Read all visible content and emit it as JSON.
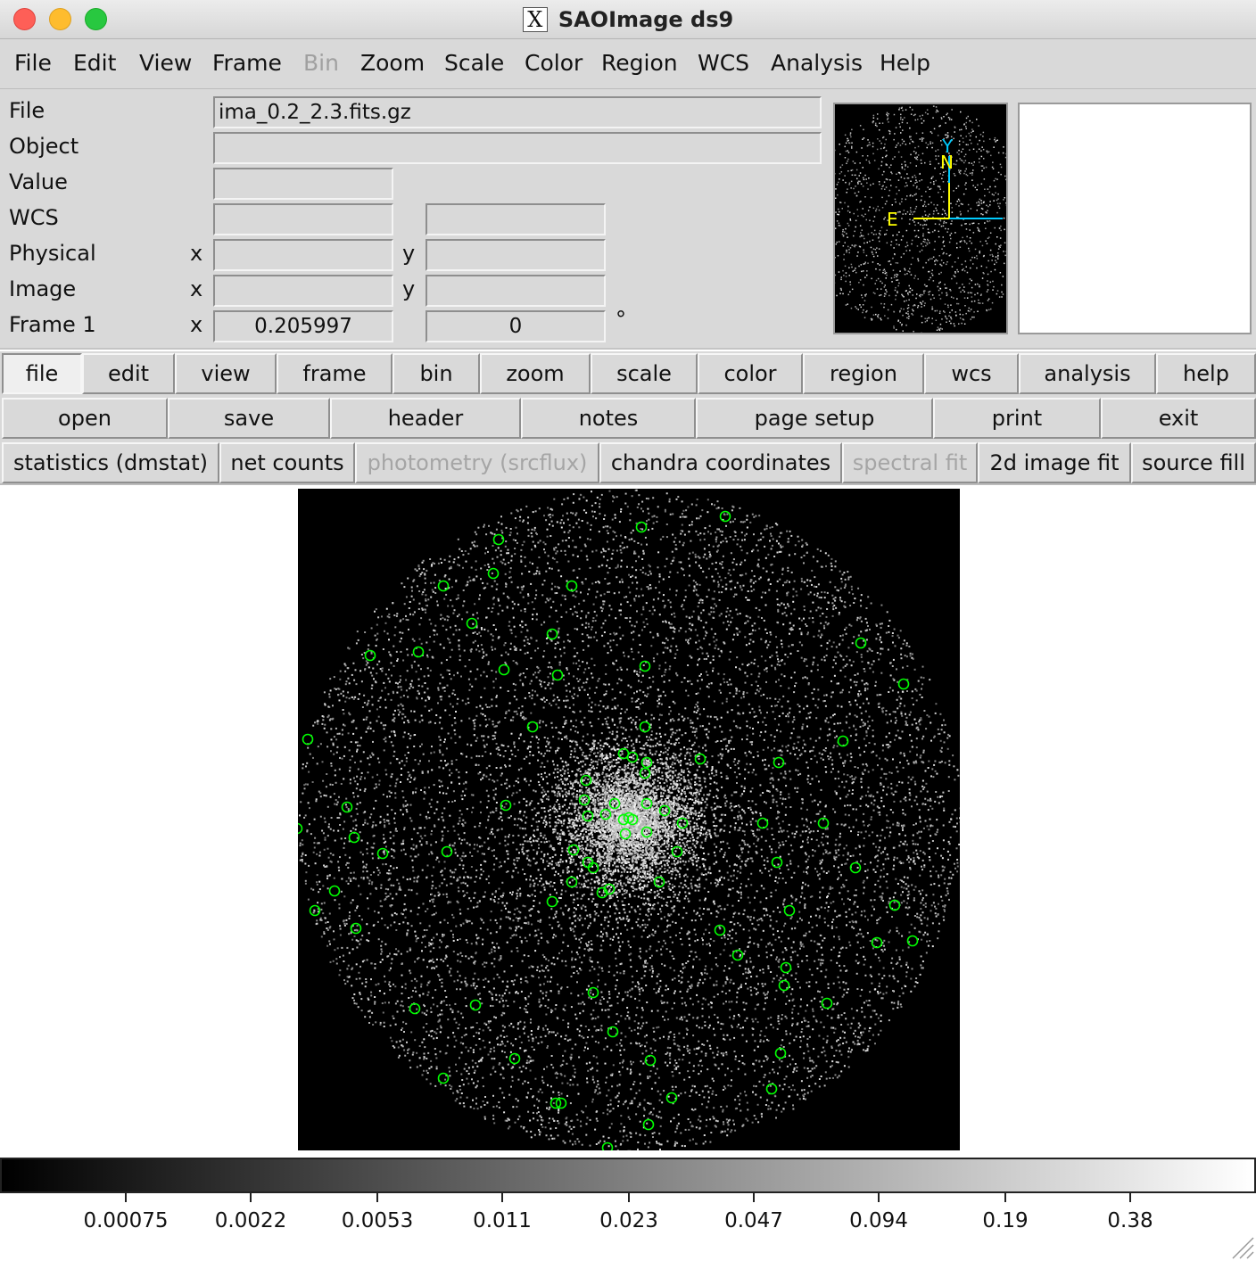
{
  "window": {
    "title": "SAOImage ds9"
  },
  "menubar": [
    {
      "label": "File",
      "x": 16,
      "enabled": true
    },
    {
      "label": "Edit",
      "x": 82,
      "enabled": true
    },
    {
      "label": "View",
      "x": 156,
      "enabled": true
    },
    {
      "label": "Frame",
      "x": 238,
      "enabled": true
    },
    {
      "label": "Bin",
      "x": 340,
      "enabled": false
    },
    {
      "label": "Zoom",
      "x": 404,
      "enabled": true
    },
    {
      "label": "Scale",
      "x": 498,
      "enabled": true
    },
    {
      "label": "Color",
      "x": 588,
      "enabled": true
    },
    {
      "label": "Region",
      "x": 674,
      "enabled": true
    },
    {
      "label": "WCS",
      "x": 782,
      "enabled": true
    },
    {
      "label": "Analysis",
      "x": 864,
      "enabled": true
    },
    {
      "label": "Help",
      "x": 986,
      "enabled": true
    }
  ],
  "info": {
    "file_label": "File",
    "file_value": "ima_0.2_2.3.fits.gz",
    "object_label": "Object",
    "object_value": "",
    "value_label": "Value",
    "value_value": "",
    "wcs_label": "WCS",
    "wcs_value1": "",
    "wcs_value2": "",
    "physical_label": "Physical",
    "physical_x_label": "x",
    "physical_y_label": "y",
    "physical_x": "",
    "physical_y": "",
    "image_label": "Image",
    "image_x_label": "x",
    "image_y_label": "y",
    "image_x": "",
    "image_y": "",
    "frame_label": "Frame 1",
    "frame_x_label": "x",
    "frame_zoom": "0.205997",
    "frame_angle": "0",
    "frame_angle_unit": "°"
  },
  "panner": {
    "y_label": "Y",
    "n_label": "N",
    "e_label": "E"
  },
  "button_rows": {
    "main": [
      {
        "label": "file",
        "active": true
      },
      {
        "label": "edit"
      },
      {
        "label": "view"
      },
      {
        "label": "frame"
      },
      {
        "label": "bin"
      },
      {
        "label": "zoom"
      },
      {
        "label": "scale"
      },
      {
        "label": "color"
      },
      {
        "label": "region"
      },
      {
        "label": "wcs"
      },
      {
        "label": "analysis"
      },
      {
        "label": "help"
      }
    ],
    "file": [
      {
        "label": "open"
      },
      {
        "label": "save"
      },
      {
        "label": "header"
      },
      {
        "label": "notes"
      },
      {
        "label": "page setup"
      },
      {
        "label": "print"
      },
      {
        "label": "exit"
      }
    ],
    "analysis": [
      {
        "label": "statistics (dmstat)"
      },
      {
        "label": "net counts"
      },
      {
        "label": "photometry (srcflux)",
        "disabled": true
      },
      {
        "label": "chandra coordinates"
      },
      {
        "label": "spectral fit",
        "disabled": true
      },
      {
        "label": "2d image fit"
      },
      {
        "label": "source fill"
      }
    ]
  },
  "colorbar": {
    "labels": [
      "0.00075",
      "0.0022",
      "0.0053",
      "0.011",
      "0.023",
      "0.047",
      "0.094",
      "0.19",
      "0.38"
    ]
  },
  "colors": {
    "region": "#00ff00",
    "compass_ne": "#ffff00",
    "compass_xy": "#00ccff"
  },
  "icons": {
    "app": "x11-icon",
    "resize": "resize-grip-icon"
  }
}
